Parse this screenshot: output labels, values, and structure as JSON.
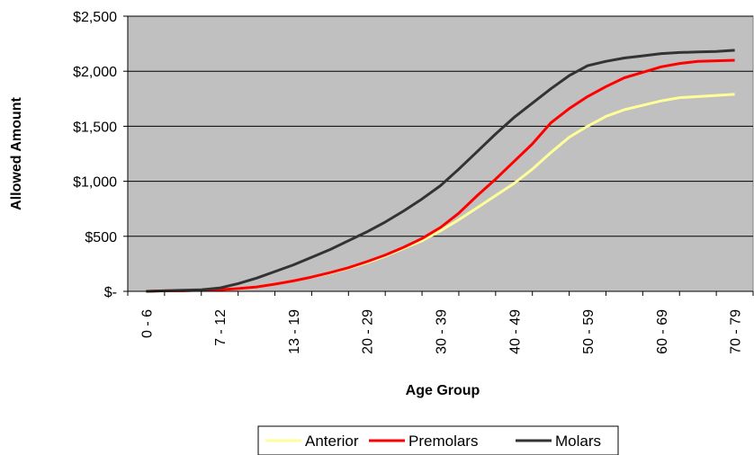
{
  "chart_data": {
    "type": "line",
    "title": "",
    "xlabel": "Age Group",
    "ylabel": "Allowed Amount",
    "ylim": [
      0,
      2500
    ],
    "y_ticks": [
      0,
      500,
      1000,
      1500,
      2000,
      2500
    ],
    "y_tick_labels": [
      "$-",
      "$500",
      "$1,000",
      "$1,500",
      "$2,000",
      "$2,500"
    ],
    "x_points": 17,
    "x_tick_labels": [
      "0 - 6",
      "7 - 12",
      "13 - 19",
      "20 - 29",
      "30 - 39",
      "40 - 49",
      "50 - 59",
      "60 - 69",
      "70 - 79"
    ],
    "x_tick_positions": [
      0,
      2,
      4,
      6,
      8,
      10,
      12,
      14,
      16
    ],
    "grid": true,
    "legend_position": "bottom",
    "background_color": "#C0C0C0",
    "series": [
      {
        "name": "Anterior",
        "color": "#FFFF99",
        "x": [
          0,
          0.5,
          1,
          1.5,
          2,
          2.5,
          3,
          3.5,
          4,
          4.5,
          5,
          5.5,
          6,
          6.5,
          7,
          7.5,
          8,
          8.5,
          9,
          9.5,
          10,
          10.5,
          11,
          11.5,
          12,
          12.5,
          13,
          13.5,
          14,
          14.5,
          15,
          15.5,
          16
        ],
        "values": [
          0,
          5,
          5,
          10,
          15,
          25,
          40,
          65,
          95,
          130,
          165,
          210,
          260,
          320,
          390,
          460,
          550,
          650,
          760,
          870,
          980,
          1110,
          1260,
          1400,
          1500,
          1590,
          1650,
          1690,
          1730,
          1760,
          1770,
          1780,
          1790
        ]
      },
      {
        "name": "Premolars",
        "color": "#FF0000",
        "x": [
          0,
          0.5,
          1,
          1.5,
          2,
          2.5,
          3,
          3.5,
          4,
          4.5,
          5,
          5.5,
          6,
          6.5,
          7,
          7.5,
          8,
          8.5,
          9,
          9.5,
          10,
          10.5,
          11,
          11.5,
          12,
          12.5,
          13,
          13.5,
          14,
          14.5,
          15,
          15.5,
          16
        ],
        "values": [
          0,
          5,
          5,
          10,
          15,
          25,
          40,
          65,
          95,
          130,
          170,
          215,
          270,
          330,
          400,
          480,
          580,
          710,
          870,
          1020,
          1180,
          1340,
          1530,
          1660,
          1770,
          1860,
          1940,
          1990,
          2040,
          2070,
          2090,
          2095,
          2100
        ]
      },
      {
        "name": "Molars",
        "color": "#333333",
        "x": [
          0,
          0.5,
          1,
          1.5,
          2,
          2.5,
          3,
          3.5,
          4,
          4.5,
          5,
          5.5,
          6,
          6.5,
          7,
          7.5,
          8,
          8.5,
          9,
          9.5,
          10,
          10.5,
          11,
          11.5,
          12,
          12.5,
          13,
          13.5,
          14,
          14.5,
          15,
          15.5,
          16
        ],
        "values": [
          0,
          5,
          10,
          15,
          30,
          70,
          120,
          180,
          240,
          310,
          380,
          460,
          540,
          630,
          730,
          840,
          960,
          1110,
          1270,
          1430,
          1580,
          1710,
          1840,
          1960,
          2050,
          2090,
          2120,
          2140,
          2160,
          2170,
          2175,
          2180,
          2190
        ]
      }
    ]
  }
}
